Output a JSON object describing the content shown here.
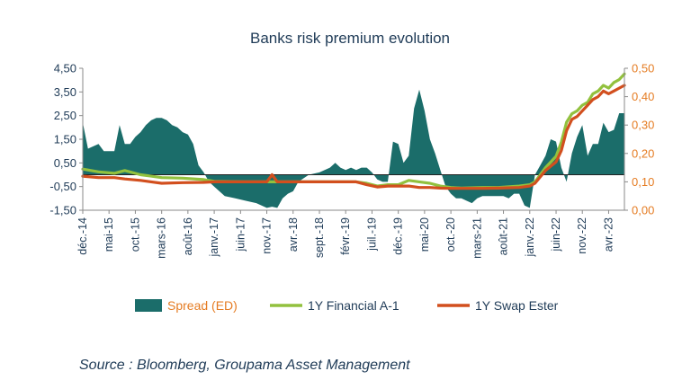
{
  "chart_data": {
    "type": "area+line",
    "title": "Banks risk premium evolution",
    "source": "Source : Bloomberg, Groupama Asset Management",
    "y_left": {
      "min": -1.5,
      "max": 4.5,
      "ticks": [
        "4,50",
        "3,50",
        "2,50",
        "1,50",
        "0,50",
        "-0,50",
        "-1,50"
      ]
    },
    "y_right": {
      "min": 0.0,
      "max": 0.5,
      "ticks": [
        "0,50",
        "0,40",
        "0,30",
        "0,20",
        "0,10",
        "0,00"
      ]
    },
    "x_range": [
      2014.917,
      2023.5
    ],
    "x_ticks": [
      {
        "label": "déc.-14",
        "t": 2014.917
      },
      {
        "label": "mai-15",
        "t": 2015.333
      },
      {
        "label": "oct.-15",
        "t": 2015.75
      },
      {
        "label": "mars-16",
        "t": 2016.167
      },
      {
        "label": "août-16",
        "t": 2016.583
      },
      {
        "label": "janv.-17",
        "t": 2017.0
      },
      {
        "label": "juin-17",
        "t": 2017.417
      },
      {
        "label": "nov.-17",
        "t": 2017.833
      },
      {
        "label": "avr.-18",
        "t": 2018.25
      },
      {
        "label": "sept.-18",
        "t": 2018.667
      },
      {
        "label": "févr.-19",
        "t": 2019.083
      },
      {
        "label": "juil.-19",
        "t": 2019.5
      },
      {
        "label": "déc.-19",
        "t": 2019.917
      },
      {
        "label": "mai-20",
        "t": 2020.333
      },
      {
        "label": "oct.-20",
        "t": 2020.75
      },
      {
        "label": "mars-21",
        "t": 2021.167
      },
      {
        "label": "août-21",
        "t": 2021.583
      },
      {
        "label": "janv.-22",
        "t": 2022.0
      },
      {
        "label": "juin-22",
        "t": 2022.417
      },
      {
        "label": "nov.-22",
        "t": 2022.833
      },
      {
        "label": "avr.-23",
        "t": 2023.25
      }
    ],
    "legend": {
      "position": "bottom",
      "items": [
        "Spread (ED)",
        "1Y Financial A-1",
        "1Y Swap Ester"
      ]
    },
    "colors": {
      "spread": "#1b6d6a",
      "financial": "#92c13e",
      "swap": "#d24f1e",
      "axis_left": "#1f3b57",
      "axis_right": "#e57c23"
    },
    "series": [
      {
        "name": "Spread (ED)",
        "type": "area",
        "axis": "left",
        "x": [
          2014.917,
          2015.0,
          2015.083,
          2015.167,
          2015.25,
          2015.333,
          2015.417,
          2015.5,
          2015.583,
          2015.667,
          2015.75,
          2015.833,
          2015.917,
          2016.0,
          2016.083,
          2016.167,
          2016.25,
          2016.333,
          2016.417,
          2016.5,
          2016.583,
          2016.667,
          2016.75,
          2016.833,
          2016.917,
          2017.0,
          2017.167,
          2017.333,
          2017.5,
          2017.667,
          2017.833,
          2017.917,
          2018.0,
          2018.083,
          2018.167,
          2018.25,
          2018.333,
          2018.5,
          2018.667,
          2018.833,
          2018.917,
          2019.0,
          2019.083,
          2019.167,
          2019.25,
          2019.333,
          2019.417,
          2019.5,
          2019.583,
          2019.667,
          2019.75,
          2019.833,
          2019.917,
          2020.0,
          2020.083,
          2020.167,
          2020.25,
          2020.333,
          2020.417,
          2020.5,
          2020.583,
          2020.667,
          2020.75,
          2020.833,
          2020.917,
          2021.0,
          2021.083,
          2021.167,
          2021.25,
          2021.333,
          2021.417,
          2021.5,
          2021.583,
          2021.667,
          2021.75,
          2021.833,
          2021.917,
          2022.0,
          2022.083,
          2022.167,
          2022.25,
          2022.333,
          2022.417,
          2022.5,
          2022.583,
          2022.667,
          2022.75,
          2022.833,
          2022.917,
          2023.0,
          2023.083,
          2023.167,
          2023.25,
          2023.333,
          2023.417,
          2023.5
        ],
        "values": [
          2.2,
          1.1,
          1.2,
          1.3,
          1.0,
          1.0,
          1.0,
          2.1,
          1.3,
          1.3,
          1.6,
          1.8,
          2.1,
          2.3,
          2.4,
          2.4,
          2.3,
          2.1,
          2.0,
          1.8,
          1.7,
          1.3,
          0.4,
          0.1,
          -0.3,
          -0.5,
          -0.9,
          -1.0,
          -1.1,
          -1.2,
          -1.4,
          -1.35,
          -1.4,
          -1.0,
          -0.8,
          -0.7,
          -0.3,
          0.0,
          0.1,
          0.3,
          0.5,
          0.3,
          0.2,
          0.3,
          0.2,
          0.3,
          0.3,
          0.1,
          -0.2,
          -0.3,
          -0.3,
          1.4,
          1.3,
          0.5,
          0.8,
          2.8,
          3.6,
          2.7,
          1.5,
          0.9,
          0.2,
          -0.5,
          -0.8,
          -1.0,
          -1.0,
          -1.1,
          -1.2,
          -1.0,
          -0.9,
          -0.9,
          -0.9,
          -0.9,
          -0.9,
          -1.0,
          -0.8,
          -0.8,
          -1.3,
          -1.4,
          0.0,
          0.4,
          0.8,
          1.5,
          1.4,
          0.3,
          -0.3,
          0.9,
          1.6,
          2.1,
          0.8,
          1.3,
          1.3,
          2.2,
          1.8,
          1.9,
          2.6,
          2.6
        ]
      },
      {
        "name": "1Y Financial A-1",
        "type": "line",
        "axis": "right",
        "x": [
          2014.917,
          2015.167,
          2015.417,
          2015.583,
          2015.833,
          2016.0,
          2016.167,
          2016.5,
          2016.833,
          2017.0,
          2017.5,
          2017.917,
          2018.167,
          2018.5,
          2018.917,
          2019.083,
          2019.25,
          2019.417,
          2019.583,
          2019.75,
          2019.917,
          2020.083,
          2020.25,
          2020.417,
          2020.583,
          2020.75,
          2020.917,
          2021.25,
          2021.5,
          2021.833,
          2022.0,
          2022.083,
          2022.25,
          2022.417,
          2022.5,
          2022.583,
          2022.667,
          2022.75,
          2022.833,
          2022.917,
          2023.0,
          2023.083,
          2023.167,
          2023.25,
          2023.333,
          2023.417,
          2023.5
        ],
        "values": [
          0.145,
          0.135,
          0.13,
          0.14,
          0.125,
          0.12,
          0.115,
          0.113,
          0.108,
          0.102,
          0.1,
          0.1,
          0.1,
          0.1,
          0.1,
          0.1,
          0.1,
          0.095,
          0.085,
          0.09,
          0.09,
          0.105,
          0.1,
          0.095,
          0.085,
          0.08,
          0.078,
          0.08,
          0.08,
          0.085,
          0.09,
          0.1,
          0.15,
          0.19,
          0.24,
          0.31,
          0.34,
          0.35,
          0.37,
          0.38,
          0.41,
          0.42,
          0.44,
          0.43,
          0.45,
          0.46,
          0.48
        ]
      },
      {
        "name": "1Y Swap Ester",
        "type": "line",
        "axis": "right",
        "x": [
          2014.917,
          2015.167,
          2015.417,
          2015.583,
          2015.833,
          2016.0,
          2016.167,
          2016.5,
          2016.833,
          2017.0,
          2017.5,
          2017.833,
          2017.917,
          2018.0,
          2018.5,
          2018.917,
          2019.083,
          2019.25,
          2019.417,
          2019.583,
          2019.75,
          2019.917,
          2020.083,
          2020.25,
          2020.417,
          2020.583,
          2020.75,
          2020.917,
          2021.25,
          2021.5,
          2021.833,
          2022.0,
          2022.083,
          2022.25,
          2022.417,
          2022.5,
          2022.583,
          2022.667,
          2022.75,
          2022.833,
          2022.917,
          2023.0,
          2023.083,
          2023.167,
          2023.25,
          2023.333,
          2023.417,
          2023.5
        ],
        "values": [
          0.12,
          0.115,
          0.115,
          0.11,
          0.105,
          0.1,
          0.095,
          0.097,
          0.098,
          0.1,
          0.1,
          0.1,
          0.125,
          0.1,
          0.1,
          0.1,
          0.1,
          0.1,
          0.09,
          0.082,
          0.085,
          0.085,
          0.085,
          0.08,
          0.08,
          0.078,
          0.077,
          0.077,
          0.077,
          0.078,
          0.08,
          0.085,
          0.095,
          0.14,
          0.17,
          0.21,
          0.28,
          0.32,
          0.33,
          0.35,
          0.37,
          0.39,
          0.4,
          0.42,
          0.41,
          0.42,
          0.43,
          0.44
        ]
      }
    ]
  }
}
